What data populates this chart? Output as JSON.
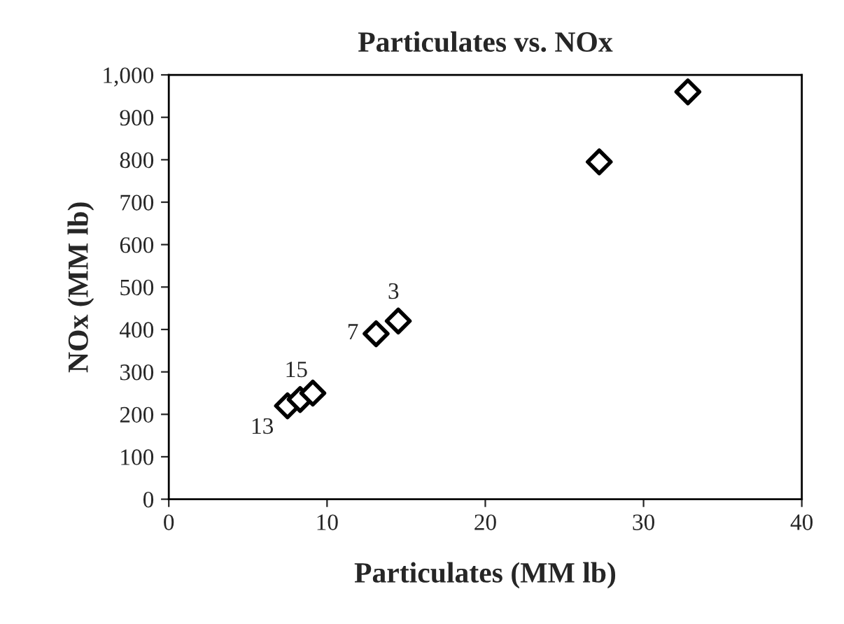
{
  "chart_data": {
    "type": "scatter",
    "title": "Particulates vs. NOx",
    "xlabel": "Particulates (MM lb)",
    "ylabel": "NOx (MM lb)",
    "x": [
      7.5,
      8.3,
      8.8,
      9.1,
      13.1,
      14.2,
      14.5,
      27.2,
      32.8
    ],
    "values": [
      220,
      235,
      null,
      250,
      390,
      null,
      420,
      795,
      960
    ],
    "color": "#000000",
    "marker": "diamond",
    "grid": false,
    "legend": false,
    "xlim": [
      0,
      40
    ],
    "xticks": [
      0,
      10,
      20,
      30,
      40
    ],
    "ylim": [
      0,
      1000
    ],
    "yticks": [
      0,
      100,
      200,
      300,
      400,
      500,
      600,
      700,
      800,
      900,
      {
        "value": 1000,
        "label": "1,000"
      }
    ],
    "annotations": [
      {
        "text": "3",
        "x": 14.2,
        "y": 415
      },
      {
        "text": "7",
        "x": 13.1,
        "y": 390
      },
      {
        "text": "15",
        "x": 8.3,
        "y": 235
      },
      {
        "text": "13",
        "x": 7.5,
        "y": 220
      }
    ]
  }
}
